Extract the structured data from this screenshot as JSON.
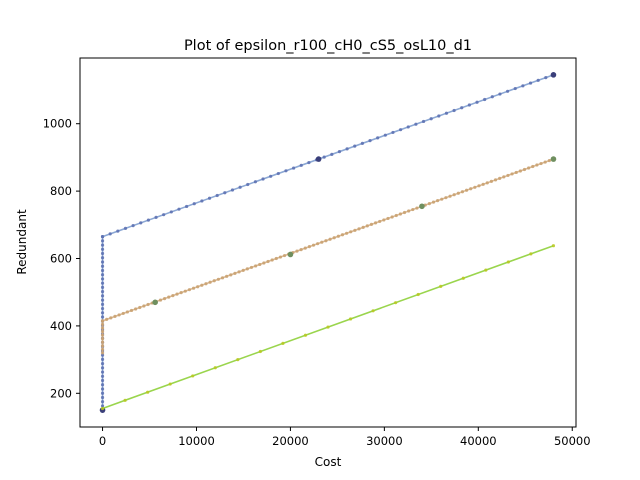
{
  "chart_data": {
    "type": "line",
    "title": "Plot of epsilon_r100_cH0_cS5_osL10_d1",
    "xlabel": "Cost",
    "ylabel": "Redundant",
    "xlim": [
      -2400,
      50400
    ],
    "ylim": [
      100,
      1195
    ],
    "grid": false,
    "legend": "none",
    "x_ticks": [
      {
        "value": 0,
        "label": "0"
      },
      {
        "value": 10000,
        "label": "10000"
      },
      {
        "value": 20000,
        "label": "20000"
      },
      {
        "value": 30000,
        "label": "30000"
      },
      {
        "value": 40000,
        "label": "40000"
      },
      {
        "value": 50000,
        "label": "50000"
      }
    ],
    "y_ticks": [
      {
        "value": 200,
        "label": "200"
      },
      {
        "value": 400,
        "label": "400"
      },
      {
        "value": 600,
        "label": "600"
      },
      {
        "value": 800,
        "label": "800"
      },
      {
        "value": 1000,
        "label": "1000"
      }
    ],
    "series": [
      {
        "color": "#7f9fcf",
        "marker_color": "#5a6fb0",
        "highlight_color": "#3a3f7a",
        "segments": [
          {
            "x_start": 0,
            "x_end": 0,
            "y_start": 150,
            "y_end": 665,
            "points": 42
          },
          {
            "x_start": 0,
            "x_end": 48000,
            "y_start": 665,
            "y_end": 1145,
            "points": 60
          }
        ],
        "highlights": [
          {
            "x": 0,
            "y": 150
          },
          {
            "x": 23000,
            "y": 895
          },
          {
            "x": 48000,
            "y": 1145
          }
        ]
      },
      {
        "color": "#d8b48a",
        "marker_color": "#c8a070",
        "highlight_color": "#6f8f5f",
        "segments": [
          {
            "x_start": 0,
            "x_end": 0,
            "y_start": 320,
            "y_end": 415,
            "points": 10
          },
          {
            "x_start": 0,
            "x_end": 48000,
            "y_start": 415,
            "y_end": 895,
            "points": 110
          }
        ],
        "highlights": [
          {
            "x": 5600,
            "y": 470
          },
          {
            "x": 20000,
            "y": 612
          },
          {
            "x": 34000,
            "y": 755
          },
          {
            "x": 48000,
            "y": 895
          }
        ]
      },
      {
        "color": "#8fd03a",
        "marker_color": "#b8c820",
        "highlight_color": "#b8c820",
        "segments": [
          {
            "x_start": 0,
            "x_end": 48000,
            "y_start": 155,
            "y_end": 638,
            "points": 21
          }
        ],
        "highlights": []
      }
    ]
  }
}
